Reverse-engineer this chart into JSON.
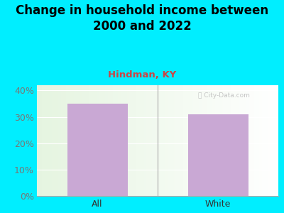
{
  "title": "Change in household income between\n2000 and 2022",
  "subtitle": "Hindman, KY",
  "categories": [
    "All",
    "White"
  ],
  "values": [
    35.0,
    31.0
  ],
  "bar_color": "#c9a8d4",
  "title_fontsize": 12,
  "subtitle_fontsize": 9.5,
  "subtitle_color": "#cc4444",
  "tick_label_fontsize": 9,
  "ytick_color": "#777777",
  "xtick_color": "#333333",
  "background_color": "#00eeff",
  "ylim": [
    0,
    42
  ],
  "yticks": [
    0,
    10,
    20,
    30,
    40
  ],
  "watermark": "ⓘ City-Data.com",
  "watermark_color": "#bbbbbb",
  "divider_color": "#aaaaaa",
  "bottom_line_color": "#aaaaaa"
}
